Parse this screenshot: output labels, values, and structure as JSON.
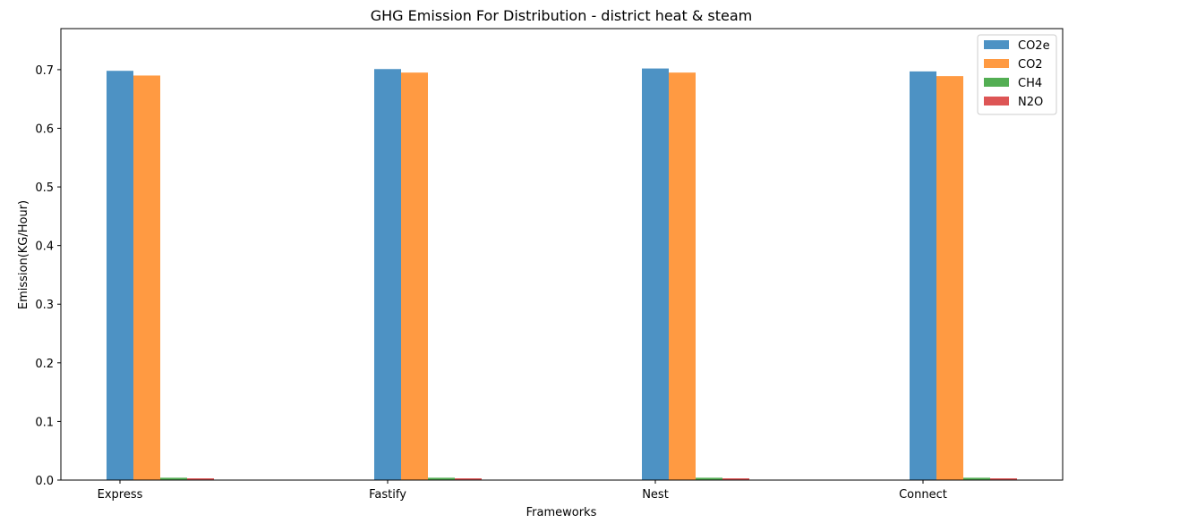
{
  "chart_data": {
    "type": "bar",
    "title": "GHG Emission For Distribution - district heat & steam",
    "xlabel": "Frameworks",
    "ylabel": "Emission(KG/Hour)",
    "categories": [
      "Express",
      "Fastify",
      "Nest",
      "Connect"
    ],
    "ylim": [
      0,
      0.77
    ],
    "yticks": [
      "0.0",
      "0.1",
      "0.2",
      "0.3",
      "0.4",
      "0.5",
      "0.6",
      "0.7"
    ],
    "grid": false,
    "legend_position": "top-right",
    "series": [
      {
        "name": "CO2e",
        "color": "#4d92c4",
        "values": [
          0.698,
          0.701,
          0.702,
          0.697
        ]
      },
      {
        "name": "CO2",
        "color": "#ff9a42",
        "values": [
          0.69,
          0.695,
          0.695,
          0.689
        ]
      },
      {
        "name": "CH4",
        "color": "#53ae53",
        "values": [
          0.004,
          0.004,
          0.004,
          0.004
        ]
      },
      {
        "name": "N2O",
        "color": "#dd5555",
        "values": [
          0.003,
          0.003,
          0.003,
          0.003
        ]
      }
    ]
  }
}
